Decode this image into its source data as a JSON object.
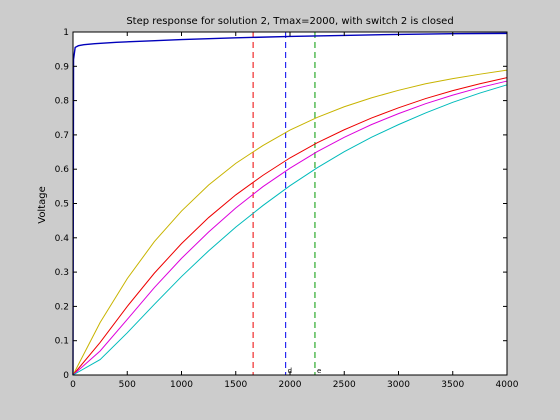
{
  "colors": {
    "figure_bg": "#cccccc",
    "axes_bg": "#ffffff",
    "axis": "#000000"
  },
  "chart_data": {
    "type": "line",
    "title": "Step response for solution 2, Tmax=2000, with switch 2 is closed",
    "xlabel": "",
    "ylabel": "Voltage",
    "xlim": [
      0,
      4000
    ],
    "ylim": [
      0,
      1
    ],
    "grid": false,
    "x_ticks": [
      0,
      500,
      1000,
      1500,
      2000,
      2500,
      3000,
      3500,
      4000
    ],
    "y_ticks": [
      0,
      0.1,
      0.2,
      0.3,
      0.4,
      0.5,
      0.6,
      0.7,
      0.8,
      0.9,
      1
    ],
    "series": [
      {
        "color": "#0000bb",
        "x": [
          0,
          5,
          20,
          50,
          100,
          200,
          400,
          700,
          1000,
          1500,
          2000,
          2500,
          3000,
          3500,
          4000
        ],
        "y": [
          0,
          0.92,
          0.955,
          0.96,
          0.963,
          0.966,
          0.97,
          0.974,
          0.978,
          0.983,
          0.987,
          0.99,
          0.993,
          0.995,
          0.996
        ]
      },
      {
        "color": "#c8b400",
        "x": [
          0,
          250,
          500,
          750,
          1000,
          1250,
          1500,
          1750,
          2000,
          2250,
          2500,
          2750,
          3000,
          3250,
          3500,
          3750,
          4000
        ],
        "y": [
          0,
          0.153,
          0.281,
          0.389,
          0.478,
          0.554,
          0.617,
          0.669,
          0.714,
          0.751,
          0.782,
          0.808,
          0.83,
          0.849,
          0.864,
          0.877,
          0.889
        ]
      },
      {
        "color": "#ee0000",
        "x": [
          0,
          250,
          500,
          750,
          1000,
          1250,
          1500,
          1750,
          2000,
          2250,
          2500,
          2750,
          3000,
          3250,
          3500,
          3750,
          4000
        ],
        "y": [
          0,
          0.095,
          0.2,
          0.297,
          0.383,
          0.459,
          0.525,
          0.582,
          0.633,
          0.677,
          0.715,
          0.749,
          0.779,
          0.806,
          0.829,
          0.849,
          0.867
        ]
      },
      {
        "color": "#dd00dd",
        "x": [
          0,
          250,
          500,
          750,
          1000,
          1250,
          1500,
          1750,
          2000,
          2250,
          2500,
          2750,
          3000,
          3250,
          3500,
          3750,
          4000
        ],
        "y": [
          0,
          0.07,
          0.162,
          0.255,
          0.34,
          0.417,
          0.487,
          0.549,
          0.603,
          0.651,
          0.693,
          0.73,
          0.762,
          0.791,
          0.816,
          0.838,
          0.857
        ]
      },
      {
        "color": "#00bbbb",
        "x": [
          0,
          250,
          500,
          750,
          1000,
          1250,
          1500,
          1750,
          2000,
          2250,
          2500,
          2750,
          3000,
          3250,
          3500,
          3750,
          4000
        ],
        "y": [
          0,
          0.045,
          0.123,
          0.206,
          0.287,
          0.362,
          0.431,
          0.494,
          0.552,
          0.604,
          0.651,
          0.693,
          0.73,
          0.764,
          0.795,
          0.822,
          0.846
        ]
      }
    ],
    "vertical_markers": [
      {
        "x": 1660,
        "color": "#ee0000",
        "label": ""
      },
      {
        "x": 1960,
        "color": "#0000ee",
        "label": "d"
      },
      {
        "x": 2230,
        "color": "#009900",
        "label": "e"
      }
    ]
  }
}
